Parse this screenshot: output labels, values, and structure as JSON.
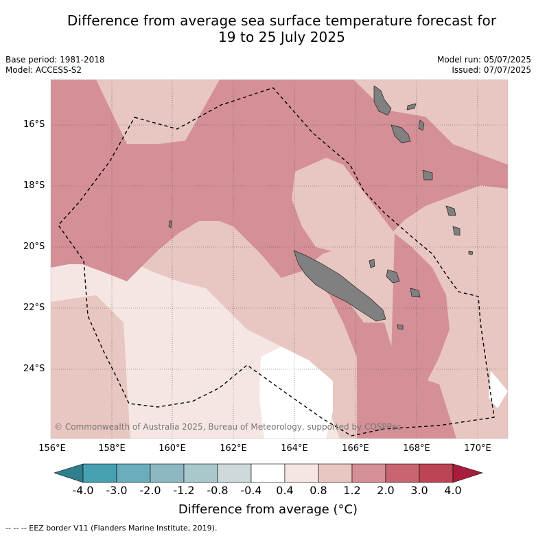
{
  "title_line1": "Difference from average sea surface temperature forecast for",
  "title_line2": "19 to 25 July 2025",
  "base_period": "Base period: 1981-2018",
  "model": "Model: ACCESS-S2",
  "model_run": "Model run: 05/07/2025",
  "issued": "Issued: 07/07/2025",
  "lat_labels": [
    "16°S",
    "18°S",
    "20°S",
    "22°S",
    "24°S"
  ],
  "lon_labels": [
    "156°E",
    "158°E",
    "160°E",
    "162°E",
    "164°E",
    "166°E",
    "168°E",
    "170°E"
  ],
  "copyright": "© Commonwealth of Australia 2025, Bureau of Meteorology, supported by COSPPac",
  "colorbar": {
    "labels": [
      "-4.0",
      "-3.0",
      "-2.0",
      "-1.2",
      "-0.8",
      "-0.4",
      "0.4",
      "0.8",
      "1.2",
      "2.0",
      "3.0",
      "4.0"
    ],
    "colors": [
      "#2f7f8d",
      "#45a0b2",
      "#6aaebd",
      "#8db8c3",
      "#a9c8cc",
      "#cdd9da",
      "#ffffff",
      "#f5e6e4",
      "#e8c6c1",
      "#d58f97",
      "#c96570",
      "#bd4455",
      "#a81d3b"
    ],
    "title": "Difference from average (°C)"
  },
  "legend_footer": "-- -- -- EEZ border V11 (Flanders Marine Institute, 2019).",
  "colors": {
    "land": "#808080",
    "very_light": "#f5e6e4",
    "light": "#e8c6c1",
    "medium": "#d58f97",
    "white": "#ffffff"
  }
}
